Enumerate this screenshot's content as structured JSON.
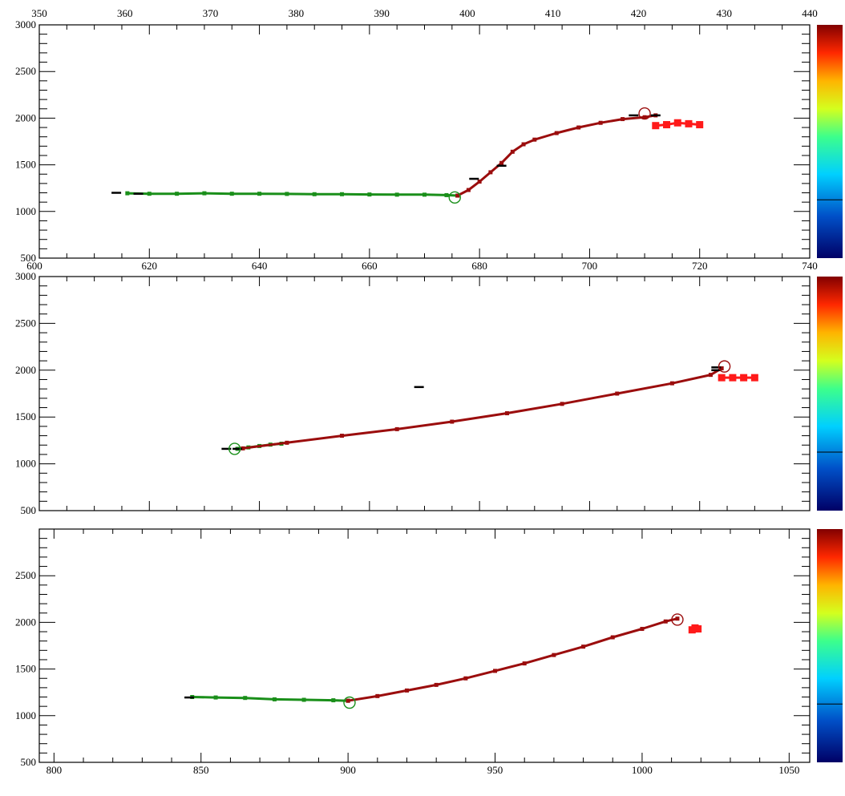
{
  "chart_data": [
    {
      "type": "scatter",
      "title": "",
      "xlabel": "",
      "ylabel": "",
      "xlim": [
        600,
        740
      ],
      "xlim_top": [
        350,
        440
      ],
      "ylim": [
        500,
        3000
      ],
      "x_ticks": [
        "620",
        "640",
        "660",
        "680",
        "700",
        "720",
        "740"
      ],
      "x_ticks_top": [
        "350",
        "360",
        "370",
        "380",
        "390",
        "400",
        "410",
        "420",
        "430",
        "440"
      ],
      "y_ticks": [
        "1000",
        "1500",
        "2000",
        "2500",
        "3000"
      ],
      "y_tick_bottom_label": "500",
      "x_tick_left_label": "600",
      "grid": false,
      "legend": "none",
      "colorbar": "right",
      "series": [
        {
          "color": "#1a8f1a",
          "points": [
            [
              616,
              1195
            ],
            [
              620,
              1190
            ],
            [
              625,
              1190
            ],
            [
              630,
              1195
            ],
            [
              635,
              1190
            ],
            [
              640,
              1190
            ],
            [
              645,
              1188
            ],
            [
              650,
              1185
            ],
            [
              655,
              1185
            ],
            [
              660,
              1182
            ],
            [
              665,
              1180
            ],
            [
              670,
              1180
            ],
            [
              674,
              1175
            ],
            [
              676,
              1170
            ]
          ]
        },
        {
          "color": "#9b0d0d",
          "points": [
            [
              676,
              1170
            ],
            [
              678,
              1230
            ],
            [
              680,
              1320
            ],
            [
              682,
              1420
            ],
            [
              684,
              1520
            ],
            [
              686,
              1640
            ],
            [
              688,
              1720
            ],
            [
              690,
              1770
            ],
            [
              694,
              1840
            ],
            [
              698,
              1900
            ],
            [
              702,
              1950
            ],
            [
              706,
              1990
            ],
            [
              710,
              2010
            ],
            [
              712,
              2030
            ]
          ]
        },
        {
          "color": "#ff1a1a",
          "points": [
            [
              712,
              1920
            ],
            [
              714,
              1930
            ],
            [
              716,
              1950
            ],
            [
              718,
              1940
            ],
            [
              720,
              1930
            ]
          ]
        },
        {
          "color": "#000000",
          "points": [
            [
              614,
              1200
            ],
            [
              618,
              1190
            ],
            [
              679,
              1350
            ],
            [
              684,
              1490
            ],
            [
              708,
              2030
            ],
            [
              712,
              2030
            ]
          ]
        }
      ],
      "markers": [
        {
          "x": 675.5,
          "y": 1150,
          "color": "#1a8f1a"
        },
        {
          "x": 710,
          "y": 2050,
          "color": "#9b0d0d"
        }
      ]
    },
    {
      "type": "scatter",
      "title": "",
      "xlabel": "",
      "ylabel": "",
      "xlim": [
        600,
        740
      ],
      "ylim": [
        500,
        3000
      ],
      "y_ticks": [
        "1000",
        "1500",
        "2000",
        "2500",
        "3000"
      ],
      "y_tick_bottom_label": "500",
      "grid": false,
      "legend": "none",
      "colorbar": "right",
      "series": [
        {
          "color": "#1a8f1a",
          "points": [
            [
              636,
              1160
            ],
            [
              638,
              1175
            ],
            [
              640,
              1190
            ],
            [
              642,
              1205
            ],
            [
              644,
              1215
            ]
          ]
        },
        {
          "color": "#9b0d0d",
          "points": [
            [
              637,
              1165
            ],
            [
              645,
              1225
            ],
            [
              655,
              1300
            ],
            [
              665,
              1370
            ],
            [
              675,
              1450
            ],
            [
              685,
              1540
            ],
            [
              695,
              1640
            ],
            [
              705,
              1750
            ],
            [
              715,
              1860
            ],
            [
              722,
              1950
            ],
            [
              724,
              2020
            ]
          ]
        },
        {
          "color": "#ff1a1a",
          "points": [
            [
              724,
              1920
            ],
            [
              726,
              1920
            ],
            [
              728,
              1920
            ],
            [
              730,
              1920
            ]
          ]
        },
        {
          "color": "#000000",
          "points": [
            [
              636,
              1160
            ],
            [
              634,
              1160
            ],
            [
              669,
              1820
            ],
            [
              723,
              2000
            ],
            [
              723,
              2030
            ]
          ]
        }
      ],
      "markers": [
        {
          "x": 635.5,
          "y": 1160,
          "color": "#1a8f1a"
        },
        {
          "x": 724.5,
          "y": 2040,
          "color": "#9b0d0d"
        }
      ]
    },
    {
      "type": "scatter",
      "title": "",
      "xlabel": "",
      "ylabel": "",
      "xlim": [
        795,
        1057
      ],
      "ylim": [
        500,
        3000
      ],
      "x_ticks": [
        "800",
        "850",
        "900",
        "950",
        "1000",
        "1050"
      ],
      "y_ticks": [
        "1000",
        "1500",
        "2000",
        "2500"
      ],
      "y_tick_bottom_label": "500",
      "grid": false,
      "legend": "none",
      "colorbar": "right",
      "series": [
        {
          "color": "#1a8f1a",
          "points": [
            [
              847,
              1200
            ],
            [
              855,
              1195
            ],
            [
              865,
              1190
            ],
            [
              875,
              1175
            ],
            [
              885,
              1170
            ],
            [
              895,
              1165
            ],
            [
              900,
              1160
            ]
          ]
        },
        {
          "color": "#9b0d0d",
          "points": [
            [
              900,
              1160
            ],
            [
              910,
              1210
            ],
            [
              920,
              1270
            ],
            [
              930,
              1330
            ],
            [
              940,
              1400
            ],
            [
              950,
              1480
            ],
            [
              960,
              1560
            ],
            [
              970,
              1650
            ],
            [
              980,
              1740
            ],
            [
              990,
              1840
            ],
            [
              1000,
              1930
            ],
            [
              1008,
              2010
            ],
            [
              1012,
              2040
            ]
          ]
        },
        {
          "color": "#ff1a1a",
          "points": [
            [
              1017,
              1920
            ],
            [
              1018,
              1940
            ],
            [
              1019,
              1930
            ]
          ]
        },
        {
          "color": "#000000",
          "points": [
            [
              846,
              1195
            ]
          ]
        }
      ],
      "markers": [
        {
          "x": 900.5,
          "y": 1140,
          "color": "#1a8f1a"
        },
        {
          "x": 1012,
          "y": 2030,
          "color": "#9b0d0d"
        }
      ]
    }
  ]
}
